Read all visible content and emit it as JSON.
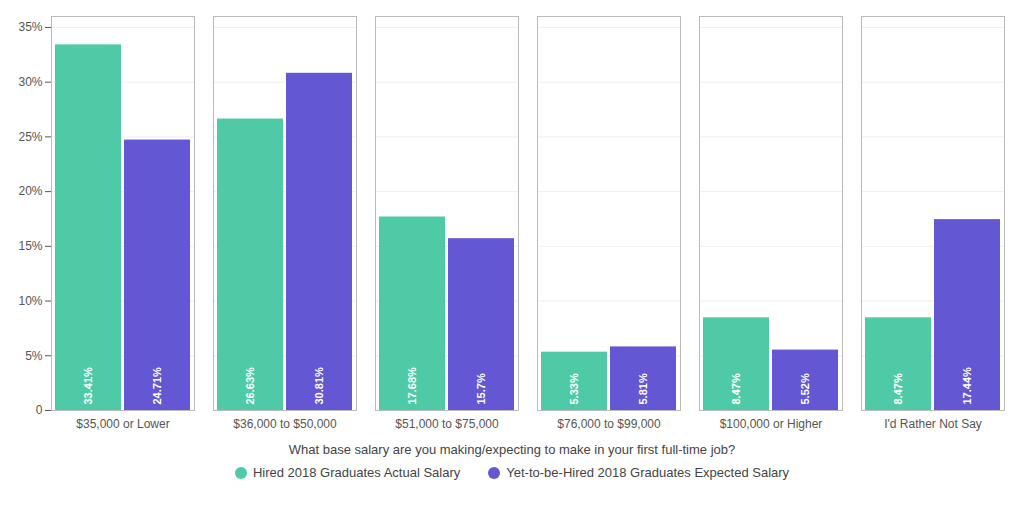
{
  "chart_data": {
    "type": "bar",
    "xlabel": "What base salary are you making/expecting to make in your first full-time job?",
    "categories": [
      "$35,000 or Lower",
      "$36,000 to $50,000",
      "$51,000 to $75,000",
      "$76,000 to $99,000",
      "$100,000 or Higher",
      "I'd Rather Not Say"
    ],
    "series": [
      {
        "name": "Hired 2018 Graduates Actual Salary",
        "color": "#4ecba6",
        "values": [
          33.41,
          26.63,
          17.68,
          5.33,
          8.47,
          8.47
        ],
        "value_labels": [
          "33.41%",
          "26.63%",
          "17.68%",
          "5.33%",
          "8.47%",
          "8.47%"
        ]
      },
      {
        "name": "Yet-to-be-Hired 2018 Graduates Expected Salary",
        "color": "#6457d4",
        "values": [
          24.71,
          30.81,
          15.7,
          5.81,
          5.52,
          17.44
        ],
        "value_labels": [
          "24.71%",
          "30.81%",
          "15.7%",
          "5.81%",
          "5.52%",
          "17.44%"
        ]
      }
    ],
    "ylim": [
      0,
      36
    ],
    "yticks": [
      0,
      {
        "value": 5,
        "label": "5%"
      },
      {
        "value": 10,
        "label": "10%"
      },
      {
        "value": 15,
        "label": "15%"
      },
      {
        "value": 20,
        "label": "20%"
      },
      {
        "value": 25,
        "label": "25%"
      },
      {
        "value": 30,
        "label": "30%"
      },
      {
        "value": 35,
        "label": "35%"
      }
    ],
    "grid": true,
    "legend": "bottom",
    "data_labels": true
  }
}
